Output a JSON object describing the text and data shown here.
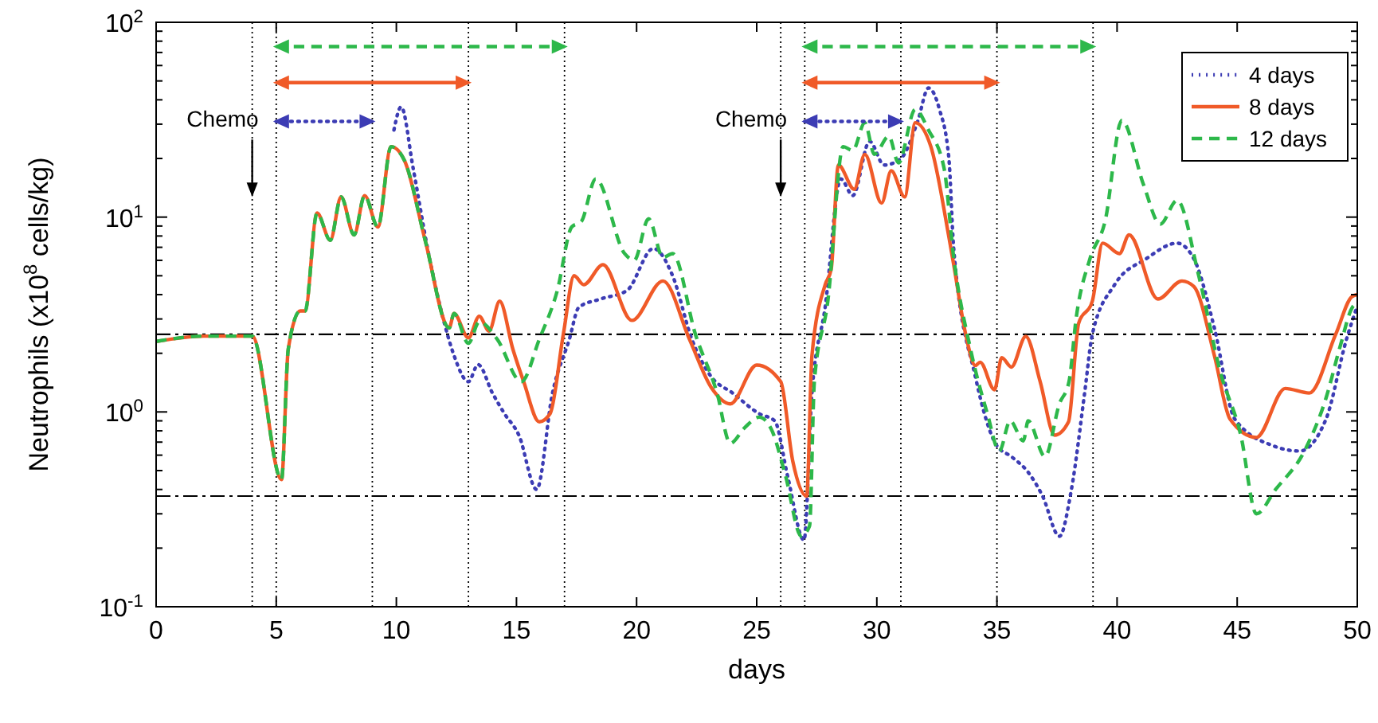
{
  "chart_data": {
    "type": "line",
    "xlabel": "days",
    "ylabel": "Neutrophils (x10$^{8}$ cells/kg)",
    "log": "y",
    "grid": false,
    "legend": "top right",
    "xlim": [
      0,
      50
    ],
    "xticks": [
      0,
      5,
      10,
      15,
      20,
      25,
      30,
      35,
      40,
      45,
      50
    ],
    "ylim": [
      0.1,
      100
    ],
    "yticks": [
      {
        "value": 0.1,
        "label": "10$^{-1}$"
      },
      {
        "value": 1,
        "label": "10$^{0}$"
      },
      {
        "value": 10,
        "label": "10$^{1}$"
      },
      {
        "value": 100,
        "label": "10$^{2}$"
      }
    ],
    "series": [
      {
        "name": "4 days",
        "color": "#3c3cb4",
        "line_style": "dotted",
        "x": [
          9.9,
          10.2,
          10.7,
          11.3,
          12.0,
          12.4,
          13.0,
          13.4,
          14.0,
          14.5,
          15.1,
          15.84,
          16.5,
          17.2,
          17.6,
          18.5,
          19.6,
          20.7,
          21.5,
          22.3,
          23.1,
          24.0,
          25.1,
          25.75,
          26.3,
          26.97,
          27.3,
          27.85,
          28.5,
          29.0,
          29.7,
          30.3,
          31.0,
          31.7,
          32.15,
          32.6,
          33.0,
          33.2,
          34.1,
          35.0,
          35.6,
          36.3,
          36.9,
          37.6,
          38.1,
          38.65,
          38.97,
          39.9,
          41.2,
          42.5,
          43.2,
          44.05,
          44.9,
          46.5,
          47.6,
          48.7,
          49.55,
          50
        ],
        "values": [
          28,
          36.8,
          17.8,
          6.9,
          2.85,
          1.95,
          1.43,
          1.75,
          1.25,
          0.98,
          0.76,
          0.4,
          1.25,
          2.36,
          3.45,
          3.8,
          4.2,
          6.9,
          5.0,
          2.36,
          1.52,
          1.25,
          0.98,
          0.9,
          0.46,
          0.22,
          1.25,
          3.45,
          15.7,
          12.9,
          24.5,
          18.5,
          20,
          31,
          46,
          36,
          20,
          6.9,
          1.52,
          0.67,
          0.59,
          0.49,
          0.37,
          0.23,
          0.4,
          1.25,
          2.5,
          4.5,
          6.1,
          7.35,
          6.1,
          2.7,
          0.92,
          0.67,
          0.63,
          0.92,
          2.36,
          3.5
        ]
      },
      {
        "name": "8 days",
        "color": "#f05a28",
        "line_style": "solid",
        "x": [
          0,
          2,
          4,
          5.22,
          5.5,
          6.0,
          6.2,
          6.7,
          7.25,
          7.7,
          8.24,
          8.68,
          9.23,
          9.78,
          10.34,
          11.2,
          12.2,
          12.4,
          13.0,
          13.45,
          13.86,
          14.3,
          14.85,
          15.3,
          15.95,
          16.4,
          16.95,
          17.4,
          17.8,
          18.6,
          19.8,
          21.1,
          22.2,
          23.1,
          23.9,
          25.0,
          26.0,
          26.5,
          27.08,
          27.3,
          27.85,
          28.1,
          28.4,
          29.06,
          29.5,
          30.2,
          30.6,
          31.16,
          31.6,
          32.25,
          33.0,
          33.2,
          33.7,
          34.1,
          34.3,
          34.9,
          35.2,
          35.6,
          36.2,
          36.8,
          37.4,
          37.98,
          38.4,
          38.97,
          39.4,
          40.1,
          40.5,
          41.7,
          42.7,
          43.2,
          44.05,
          44.7,
          45.8,
          47.0,
          48.0,
          49.1,
          49.77,
          50
        ],
        "values": [
          2.3,
          2.45,
          2.45,
          0.45,
          2.1,
          3.3,
          3.3,
          10.5,
          7.6,
          12.7,
          8.1,
          12.9,
          8.9,
          23,
          19.5,
          7.6,
          2.7,
          3.2,
          2.4,
          3.1,
          2.6,
          3.7,
          2.1,
          1.43,
          0.89,
          0.98,
          2.5,
          5.0,
          4.5,
          5.7,
          2.95,
          4.7,
          2.36,
          1.34,
          1.1,
          1.74,
          1.43,
          0.56,
          0.37,
          1.95,
          4.5,
          5.4,
          18.5,
          13.9,
          21,
          11.8,
          17.3,
          12.7,
          30.5,
          23,
          7.9,
          5.7,
          2.5,
          1.73,
          1.8,
          1.3,
          1.9,
          1.7,
          2.44,
          1.43,
          0.76,
          0.89,
          2.85,
          3.7,
          7.35,
          6.5,
          8.1,
          3.8,
          4.7,
          4.4,
          1.95,
          0.92,
          0.74,
          1.32,
          1.25,
          2.5,
          3.9,
          4.0
        ]
      },
      {
        "name": "12 days",
        "color": "#2db84a",
        "line_style": "dashed",
        "x": [
          0,
          2,
          4,
          5.22,
          5.5,
          6.0,
          6.2,
          6.7,
          7.25,
          7.7,
          8.24,
          8.68,
          9.23,
          9.78,
          10.34,
          11.2,
          12.2,
          12.4,
          13.0,
          13.45,
          14.2,
          15.2,
          15.95,
          16.7,
          17.3,
          17.7,
          18.3,
          19.5,
          19.9,
          20.5,
          21.1,
          21.5,
          22.45,
          23.35,
          23.9,
          24.5,
          25.1,
          25.6,
          26.2,
          26.86,
          27.2,
          27.4,
          27.96,
          28.6,
          29.0,
          29.5,
          29.9,
          30.5,
          30.9,
          31.6,
          32.15,
          32.8,
          33.2,
          33.9,
          34.6,
          35.1,
          35.55,
          36.1,
          36.3,
          37.0,
          37.6,
          38.0,
          38.3,
          38.87,
          39.5,
          40.2,
          41.1,
          41.8,
          42.5,
          43.4,
          44.3,
          45.15,
          45.8,
          46.6,
          47.8,
          48.7,
          49.3,
          49.8,
          50
        ],
        "values": [
          2.3,
          2.45,
          2.45,
          0.45,
          2.1,
          3.3,
          3.3,
          10.5,
          7.6,
          12.7,
          8.1,
          12.9,
          8.9,
          23,
          19.5,
          7.6,
          2.7,
          3.2,
          2.25,
          2.9,
          2.36,
          1.43,
          2.36,
          4.2,
          8.9,
          9.5,
          15.7,
          6.5,
          6.0,
          9.8,
          6.2,
          6.5,
          2.5,
          1.25,
          0.69,
          0.83,
          0.94,
          0.82,
          0.47,
          0.23,
          0.26,
          1.43,
          3.7,
          23,
          22,
          30.5,
          21,
          26,
          19,
          35.7,
          28,
          17.8,
          6.2,
          2.1,
          0.98,
          0.63,
          0.9,
          0.71,
          0.9,
          0.59,
          1.1,
          1.43,
          3.04,
          6.1,
          9.5,
          31.4,
          14.7,
          9.2,
          12.2,
          5.0,
          1.6,
          0.76,
          0.3,
          0.4,
          0.63,
          1.18,
          2.2,
          3.45,
          3.6
        ]
      },
      {
        "type": "line",
        "color": "#2db84a",
        "line_style": "dashed",
        "marker": "triangle",
        "x": [
          5,
          17
        ],
        "values": [
          75,
          75
        ]
      },
      {
        "type": "line",
        "color": "#f05a28",
        "line_style": "solid",
        "marker": "triangle",
        "x": [
          5,
          13
        ],
        "values": [
          49,
          49
        ]
      },
      {
        "type": "line",
        "color": "#3c3cb4",
        "line_style": "dotted",
        "marker": "triangle",
        "x": [
          5,
          9
        ],
        "values": [
          31,
          31
        ]
      },
      {
        "type": "line",
        "color": "#2db84a",
        "line_style": "dashed",
        "marker": "triangle",
        "x": [
          27,
          39
        ],
        "values": [
          75,
          75
        ]
      },
      {
        "type": "line",
        "color": "#f05a28",
        "line_style": "solid",
        "marker": "triangle",
        "x": [
          27,
          35
        ],
        "values": [
          49,
          49
        ]
      },
      {
        "type": "line",
        "color": "#3c3cb4",
        "line_style": "dotted",
        "marker": "triangle",
        "x": [
          27,
          31
        ],
        "values": [
          31,
          31
        ]
      }
    ],
    "ref_lines": [
      {
        "axis": "y",
        "value": 2.5,
        "color": "#000000",
        "line_style": "dashed"
      },
      {
        "axis": "y",
        "value": 0.37,
        "color": "#000000",
        "line_style": "dashed"
      },
      {
        "axis": "x",
        "value": 4,
        "color": "#000000",
        "line_style": "dotted"
      },
      {
        "axis": "x",
        "value": 5,
        "color": "#000000",
        "line_style": "dotted"
      },
      {
        "axis": "x",
        "value": 9,
        "color": "#000000",
        "line_style": "dotted"
      },
      {
        "axis": "x",
        "value": 13,
        "color": "#000000",
        "line_style": "dotted"
      },
      {
        "axis": "x",
        "value": 17,
        "color": "#000000",
        "line_style": "dotted"
      },
      {
        "axis": "x",
        "value": 26,
        "color": "#000000",
        "line_style": "dotted"
      },
      {
        "axis": "x",
        "value": 27,
        "color": "#000000",
        "line_style": "dotted"
      },
      {
        "axis": "x",
        "value": 31,
        "color": "#000000",
        "line_style": "dotted"
      },
      {
        "axis": "x",
        "value": 35,
        "color": "#000000",
        "line_style": "dotted"
      },
      {
        "axis": "x",
        "value": 39,
        "color": "#000000",
        "line_style": "dotted"
      }
    ],
    "annotations": [
      {
        "text": "Chemo",
        "x": 4,
        "y": 12.7
      },
      {
        "text": "Chemo",
        "x": 26,
        "y": 12.7
      }
    ]
  }
}
